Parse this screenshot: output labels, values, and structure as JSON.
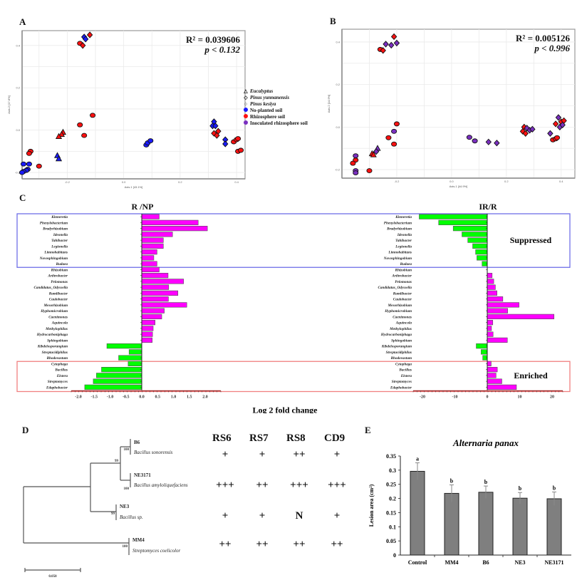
{
  "panels": {
    "A": "A",
    "B": "B",
    "C": "C",
    "D": "D",
    "E": "E"
  },
  "legend": {
    "items": [
      {
        "symbol": "triangle-open",
        "label": "Eucalyptus",
        "italic": true
      },
      {
        "symbol": "diamond-open",
        "label": "Pinus yunnanensis",
        "italic": true
      },
      {
        "symbol": "circle-open",
        "label": "Pinus kesiya",
        "italic": true
      },
      {
        "symbol": "dot",
        "color": "#1a1aff",
        "label": "No-planted soil",
        "italic": false
      },
      {
        "symbol": "dot",
        "color": "#ff1010",
        "label": "Rhizosphere soil",
        "italic": false
      },
      {
        "symbol": "dot",
        "color": "#7a2fc0",
        "label": "Inoculated rhizosphere soil",
        "italic": false
      }
    ]
  },
  "colors": {
    "np": "#1a1aff",
    "r": "#ff1010",
    "ir": "#7a2fc0",
    "pos": "#ff00ff",
    "neg": "#00ff00",
    "suppressed_box": "#6f6fe8",
    "enriched_box": "#f08080",
    "bar_gray": "#7f7f7f"
  },
  "chart_data": [
    {
      "id": "A",
      "type": "scatter",
      "stat_r2": "R² = 0.039606",
      "stat_p": "p < 0.132",
      "xlabel": "Axis.1  [43.1%]",
      "ylabel": "Axis.2  [17.8%]",
      "xlim": [
        -0.36,
        0.43
      ],
      "ylim": [
        -0.23,
        0.47
      ],
      "xticks": [
        -0.2,
        0.0,
        0.2,
        0.4
      ],
      "xtick_labels": [
        "-0.2",
        "0.0",
        "0.2",
        "0.4"
      ],
      "yticks": [
        -0.2,
        0.0,
        0.2,
        0.4
      ],
      "ytick_labels": [
        "-0.2",
        "0.0",
        "0.2",
        "0.4"
      ],
      "grid": true,
      "points": [
        {
          "x": -0.14,
          "y": 0.44,
          "g": "np",
          "s": "diamond"
        },
        {
          "x": -0.135,
          "y": 0.43,
          "g": "np",
          "s": "diamond"
        },
        {
          "x": -0.12,
          "y": 0.45,
          "g": "r",
          "s": "diamond"
        },
        {
          "x": -0.155,
          "y": 0.41,
          "g": "r",
          "s": "circle"
        },
        {
          "x": -0.145,
          "y": 0.4,
          "g": "r",
          "s": "diamond"
        },
        {
          "x": -0.11,
          "y": 0.07,
          "g": "r",
          "s": "circle"
        },
        {
          "x": -0.155,
          "y": 0.025,
          "g": "r",
          "s": "circle"
        },
        {
          "x": -0.14,
          "y": -0.025,
          "g": "r",
          "s": "circle"
        },
        {
          "x": -0.215,
          "y": -0.01,
          "g": "r",
          "s": "triangle"
        },
        {
          "x": -0.22,
          "y": -0.02,
          "g": "r",
          "s": "triangle"
        },
        {
          "x": -0.23,
          "y": -0.03,
          "g": "r",
          "s": "triangle"
        },
        {
          "x": -0.235,
          "y": -0.12,
          "g": "np",
          "s": "triangle"
        },
        {
          "x": -0.23,
          "y": -0.135,
          "g": "np",
          "s": "triangle"
        },
        {
          "x": -0.33,
          "y": -0.1,
          "g": "r",
          "s": "circle"
        },
        {
          "x": -0.335,
          "y": -0.11,
          "g": "r",
          "s": "circle"
        },
        {
          "x": -0.3,
          "y": -0.17,
          "g": "r",
          "s": "circle"
        },
        {
          "x": -0.335,
          "y": -0.16,
          "g": "np",
          "s": "circle"
        },
        {
          "x": -0.355,
          "y": -0.16,
          "g": "np",
          "s": "circle"
        },
        {
          "x": -0.34,
          "y": -0.185,
          "g": "np",
          "s": "circle"
        },
        {
          "x": -0.345,
          "y": -0.19,
          "g": "np",
          "s": "circle"
        },
        {
          "x": -0.355,
          "y": -0.195,
          "g": "np",
          "s": "circle"
        },
        {
          "x": -0.36,
          "y": -0.2,
          "g": "np",
          "s": "circle"
        },
        {
          "x": 0.08,
          "y": -0.07,
          "g": "np",
          "s": "circle"
        },
        {
          "x": 0.085,
          "y": -0.06,
          "g": "np",
          "s": "circle"
        },
        {
          "x": 0.095,
          "y": -0.05,
          "g": "np",
          "s": "circle"
        },
        {
          "x": 0.32,
          "y": 0.04,
          "g": "np",
          "s": "diamond"
        },
        {
          "x": 0.315,
          "y": 0.02,
          "g": "np",
          "s": "diamond"
        },
        {
          "x": 0.325,
          "y": 0.02,
          "g": "np",
          "s": "diamond"
        },
        {
          "x": 0.32,
          "y": -0.015,
          "g": "r",
          "s": "diamond"
        },
        {
          "x": 0.335,
          "y": -0.005,
          "g": "r",
          "s": "diamond"
        },
        {
          "x": 0.33,
          "y": -0.025,
          "g": "r",
          "s": "diamond"
        },
        {
          "x": 0.36,
          "y": -0.045,
          "g": "np",
          "s": "diamond"
        },
        {
          "x": 0.36,
          "y": -0.065,
          "g": "np",
          "s": "diamond"
        },
        {
          "x": 0.39,
          "y": -0.055,
          "g": "r",
          "s": "circle"
        },
        {
          "x": 0.4,
          "y": -0.045,
          "g": "r",
          "s": "circle"
        },
        {
          "x": 0.405,
          "y": -0.04,
          "g": "r",
          "s": "circle"
        },
        {
          "x": 0.405,
          "y": -0.1,
          "g": "r",
          "s": "circle"
        },
        {
          "x": 0.415,
          "y": -0.095,
          "g": "r",
          "s": "circle"
        }
      ]
    },
    {
      "id": "B",
      "type": "scatter",
      "stat_r2": "R² = 0.005126",
      "stat_p": "p < 0.996",
      "xlabel": "Axis.1  [44.9%]",
      "ylabel": "Axis.2  [14.9%]",
      "xlim": [
        -0.4,
        0.45
      ],
      "ylim": [
        -0.24,
        0.46
      ],
      "xticks": [
        -0.2,
        0.0,
        0.2,
        0.4
      ],
      "xtick_labels": [
        "-0.2",
        "0.0",
        "0.2",
        "0.4"
      ],
      "yticks": [
        -0.2,
        0.0,
        0.2,
        0.4
      ],
      "ytick_labels": [
        "-0.2",
        "0.0",
        "0.2",
        "0.4"
      ],
      "grid": true,
      "points": [
        {
          "x": -0.21,
          "y": 0.425,
          "g": "r",
          "s": "diamond"
        },
        {
          "x": -0.26,
          "y": 0.365,
          "g": "r",
          "s": "circle"
        },
        {
          "x": -0.25,
          "y": 0.36,
          "g": "r",
          "s": "diamond"
        },
        {
          "x": -0.24,
          "y": 0.39,
          "g": "ir",
          "s": "diamond"
        },
        {
          "x": -0.22,
          "y": 0.385,
          "g": "ir",
          "s": "diamond"
        },
        {
          "x": -0.2,
          "y": 0.395,
          "g": "ir",
          "s": "diamond"
        },
        {
          "x": -0.2,
          "y": 0.015,
          "g": "r",
          "s": "circle"
        },
        {
          "x": -0.21,
          "y": -0.02,
          "g": "ir",
          "s": "circle"
        },
        {
          "x": -0.23,
          "y": -0.05,
          "g": "r",
          "s": "circle"
        },
        {
          "x": -0.21,
          "y": -0.08,
          "g": "r",
          "s": "circle"
        },
        {
          "x": -0.27,
          "y": -0.1,
          "g": "ir",
          "s": "triangle"
        },
        {
          "x": -0.275,
          "y": -0.115,
          "g": "ir",
          "s": "diamond"
        },
        {
          "x": -0.29,
          "y": -0.125,
          "g": "r",
          "s": "triangle"
        },
        {
          "x": -0.285,
          "y": -0.13,
          "g": "r",
          "s": "triangle"
        },
        {
          "x": -0.35,
          "y": -0.135,
          "g": "ir",
          "s": "circle"
        },
        {
          "x": -0.35,
          "y": -0.155,
          "g": "r",
          "s": "circle"
        },
        {
          "x": -0.36,
          "y": -0.17,
          "g": "r",
          "s": "circle"
        },
        {
          "x": -0.35,
          "y": -0.205,
          "g": "ir",
          "s": "circle"
        },
        {
          "x": -0.35,
          "y": -0.215,
          "g": "ir",
          "s": "circle"
        },
        {
          "x": -0.3,
          "y": -0.205,
          "g": "r",
          "s": "circle"
        },
        {
          "x": 0.065,
          "y": -0.048,
          "g": "ir",
          "s": "circle"
        },
        {
          "x": 0.085,
          "y": -0.065,
          "g": "ir",
          "s": "circle"
        },
        {
          "x": 0.135,
          "y": -0.07,
          "g": "ir",
          "s": "diamond"
        },
        {
          "x": 0.165,
          "y": -0.075,
          "g": "ir",
          "s": "diamond"
        },
        {
          "x": 0.265,
          "y": 0.0,
          "g": "r",
          "s": "diamond"
        },
        {
          "x": 0.26,
          "y": -0.02,
          "g": "r",
          "s": "diamond"
        },
        {
          "x": 0.27,
          "y": -0.03,
          "g": "r",
          "s": "diamond"
        },
        {
          "x": 0.275,
          "y": -0.005,
          "g": "ir",
          "s": "diamond"
        },
        {
          "x": 0.285,
          "y": -0.015,
          "g": "ir",
          "s": "diamond"
        },
        {
          "x": 0.295,
          "y": -0.01,
          "g": "ir",
          "s": "diamond"
        },
        {
          "x": 0.36,
          "y": -0.03,
          "g": "ir",
          "s": "diamond"
        },
        {
          "x": 0.39,
          "y": 0.045,
          "g": "ir",
          "s": "diamond"
        },
        {
          "x": 0.38,
          "y": 0.015,
          "g": "r",
          "s": "diamond"
        },
        {
          "x": 0.4,
          "y": 0.025,
          "g": "r",
          "s": "diamond"
        },
        {
          "x": 0.41,
          "y": 0.03,
          "g": "r",
          "s": "diamond"
        },
        {
          "x": 0.395,
          "y": 0.0,
          "g": "ir",
          "s": "diamond"
        },
        {
          "x": 0.405,
          "y": 0.01,
          "g": "ir",
          "s": "diamond"
        },
        {
          "x": 0.37,
          "y": -0.06,
          "g": "r",
          "s": "circle"
        },
        {
          "x": 0.38,
          "y": -0.055,
          "g": "r",
          "s": "circle"
        },
        {
          "x": 0.385,
          "y": -0.05,
          "g": "r",
          "s": "circle"
        }
      ]
    },
    {
      "id": "C",
      "type": "bar",
      "orientation": "horizontal",
      "xlabel": "Log 2 fold change",
      "categories": [
        "Kinneretia",
        "Phenylobacterium",
        "Bradyrhizobium",
        "Ideonella",
        "Tahibacter",
        "Legionella",
        "Limnohabitans",
        "Novosphingobium",
        "Rudaea",
        "Rhizobium",
        "Arthrobacter",
        "Pelomonas",
        "Candidatus_Odyssella",
        "Ramlibacter",
        "Caulobacter",
        "Mesorhizobium",
        "Hyphomicrobium",
        "Caenimonas",
        "Aquincola",
        "Methylophilus",
        "Hydrocarboniphaga",
        "Sphingobium",
        "Kibdelosporangium",
        "Streptacidiphilus",
        "Rhodovastum",
        "Cytophaga",
        "Bacillus",
        "Elstera",
        "Streptomyces",
        "Edaphobacter"
      ],
      "series": [
        {
          "name": "R /NP",
          "xlim": [
            -2.1,
            2.4
          ],
          "xticks": [
            "-2.0",
            "-1.5",
            "-1.0",
            "-0.5",
            "0.0",
            "0.5",
            "1.0",
            "1.5",
            "2.0"
          ],
          "values": [
            0.55,
            1.78,
            2.07,
            0.97,
            0.68,
            0.68,
            0.48,
            0.38,
            0.48,
            0.55,
            0.83,
            1.32,
            0.85,
            1.14,
            0.84,
            1.42,
            0.71,
            0.63,
            0.42,
            0.36,
            0.34,
            0.33,
            -1.1,
            -0.4,
            -0.73,
            -0.43,
            -1.27,
            -1.43,
            -1.53,
            -1.8
          ]
        },
        {
          "name": "IR/R",
          "xlim": [
            -24,
            24
          ],
          "xticks": [
            "-20",
            "-10",
            "0",
            "10",
            "20"
          ],
          "values": [
            -21,
            -15,
            -10.5,
            -7.8,
            -6,
            -4.5,
            -3.6,
            -3.2,
            -1.6,
            0,
            1.5,
            2.0,
            2.5,
            3.0,
            4.8,
            9.8,
            6.3,
            20.6,
            1.7,
            1.3,
            1.8,
            6.2,
            -3.4,
            -1.9,
            -1.4,
            1.2,
            3.1,
            2.7,
            4.5,
            9.0
          ]
        }
      ],
      "suppressed_label": "Suppressed",
      "enriched_label": "Enriched"
    },
    {
      "id": "E",
      "type": "bar",
      "title": "Alternaria panax",
      "xlabel": "",
      "ylabel": "Lesion area (cm²)",
      "categories": [
        "Control",
        "MM4",
        "B6",
        "NE3",
        "NE3171"
      ],
      "values": [
        0.296,
        0.218,
        0.222,
        0.201,
        0.199
      ],
      "errors": [
        0.03,
        0.03,
        0.022,
        0.02,
        0.024
      ],
      "letters": [
        "a",
        "b",
        "b",
        "b",
        "b"
      ],
      "ylim": [
        0,
        0.35
      ],
      "yticks": [
        "0",
        "0.05",
        "0.1",
        "0.15",
        "0.2",
        "0.25",
        "0.3",
        "0.35"
      ]
    }
  ],
  "tree": {
    "scale_label": "0.050",
    "leaves": [
      {
        "strain": "B6",
        "species": "Bacillus sonorensis",
        "bootstrap": "100"
      },
      {
        "strain": "NE3171",
        "species": "Bacillus amyloliquefaciens",
        "bootstrap": "100"
      },
      {
        "strain": "NE3",
        "species": "Bacillus sp.",
        "bootstrap": "99"
      },
      {
        "strain": "MM4",
        "species": "Streptomyces coelicolor",
        "bootstrap": "100"
      }
    ],
    "inner_bootstrap": "99"
  },
  "table": {
    "headers": [
      "RS6",
      "RS7",
      "RS8",
      "CD9"
    ],
    "rows": [
      [
        "+",
        "+",
        "++",
        "+"
      ],
      [
        "+++",
        "++",
        "+++",
        "+++"
      ],
      [
        "+",
        "+",
        "N",
        "+"
      ],
      [
        "++",
        "++",
        "++",
        "++"
      ]
    ]
  }
}
